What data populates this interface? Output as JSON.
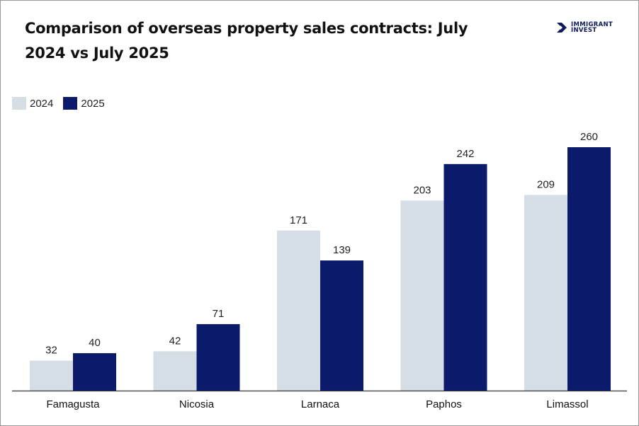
{
  "title": "Comparison of overseas property sales contracts: July 2024 vs July 2025",
  "logo": {
    "line1": "IMMIGRANT",
    "line2": "INVEST",
    "icon": "arrow-logo-icon",
    "color": "#0d1a5c"
  },
  "legend": [
    {
      "label": "2024",
      "color": "#d5dde5"
    },
    {
      "label": "2025",
      "color": "#0c1a6b"
    }
  ],
  "chart_data": {
    "type": "bar",
    "title": "Comparison of overseas property sales contracts: July 2024 vs July 2025",
    "xlabel": "",
    "ylabel": "",
    "categories": [
      "Famagusta",
      "Nicosia",
      "Larnaca",
      "Paphos",
      "Limassol"
    ],
    "series": [
      {
        "name": "2024",
        "color": "#d5dde5",
        "values": [
          32,
          42,
          171,
          203,
          209
        ]
      },
      {
        "name": "2025",
        "color": "#0c1a6b",
        "values": [
          40,
          71,
          139,
          242,
          260
        ]
      }
    ],
    "ylim": [
      0,
      260
    ],
    "grid": false,
    "legend_position": "top-left",
    "data_labels": true
  }
}
